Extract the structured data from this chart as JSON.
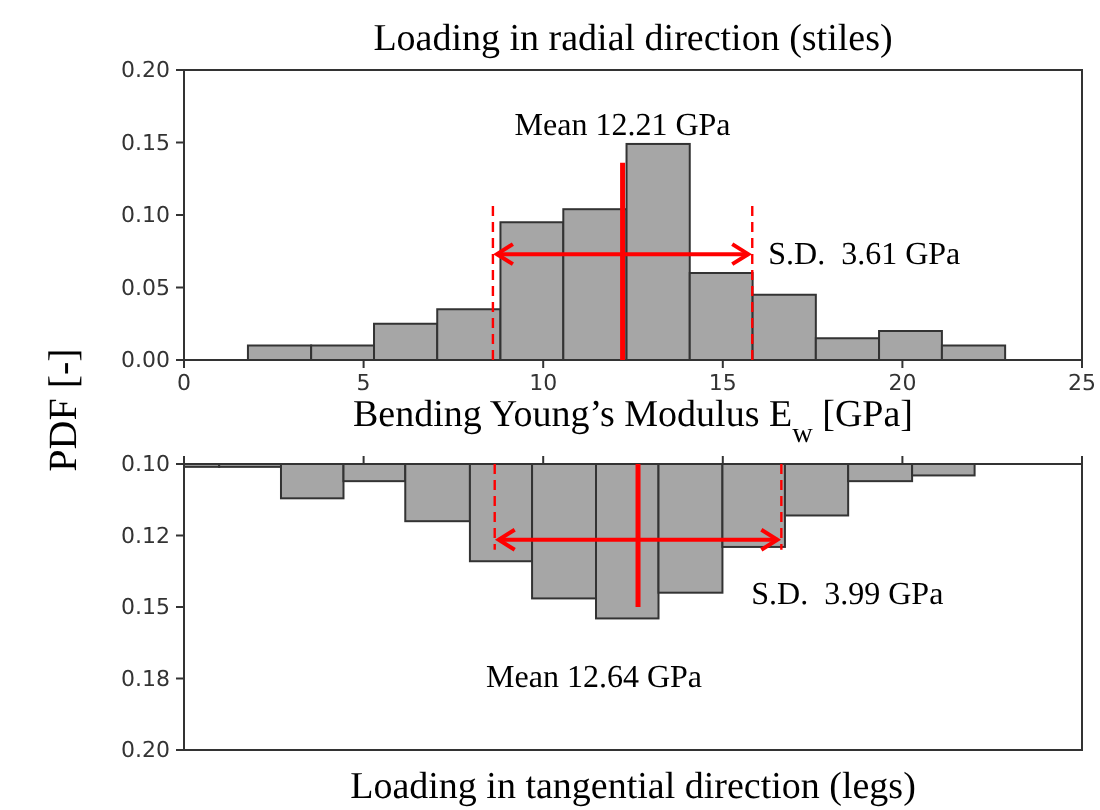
{
  "chart_data": [
    {
      "type": "histogram",
      "title": "Loading in radial direction (stiles)",
      "xlabel": "Bending Young’s Modulus E$_{w}$ [GPa]",
      "ylabel": "PDF [-]",
      "color": "#a6a6a6",
      "bins": [
        1.78,
        3.54,
        5.29,
        7.05,
        8.81,
        10.56,
        12.32,
        14.08,
        15.83,
        17.59,
        19.35,
        21.1,
        22.86
      ],
      "values": [
        0.01,
        0.01,
        0.025,
        0.035,
        0.095,
        0.104,
        0.149,
        0.06,
        0.045,
        0.015,
        0.02,
        0.01
      ],
      "xlim": [
        0,
        25
      ],
      "xticks": [
        0,
        5,
        10,
        15,
        20,
        25
      ],
      "ylim": [
        0,
        0.2
      ],
      "yticks": [
        {
          "value": 0,
          "label": "0.00"
        },
        {
          "value": 0.05,
          "label": "0.05"
        },
        {
          "value": 0.1,
          "label": "0.10"
        },
        {
          "value": 0.15,
          "label": "0.15"
        },
        {
          "value": 0.2,
          "label": "0.20"
        }
      ],
      "ref_lines": [
        {
          "axis": "x",
          "value": 12.21,
          "label": "Mean 12.21 GPa",
          "color": "#ff0000"
        },
        {
          "axis": "x",
          "value": 8.6,
          "color": "#ff0000",
          "line_style": "dashed"
        },
        {
          "axis": "x",
          "value": 15.82,
          "color": "#ff0000",
          "line_style": "dashed"
        }
      ],
      "annotations": [
        {
          "text": "S.D.  3.61 GPa",
          "x": 15.82,
          "y": 0.073
        }
      ]
    },
    {
      "type": "histogram",
      "title": "Loading in tangential direction (legs)",
      "color": "#a6a6a6",
      "tick_labels": "y",
      "bins": [
        0,
        0.98,
        2.7,
        4.44,
        6.16,
        7.96,
        9.69,
        11.47,
        13.21,
        14.99,
        16.73,
        18.49,
        20.27,
        22.01
      ],
      "values": [
        0.101,
        0.101,
        0.112,
        0.106,
        0.12,
        0.134,
        0.147,
        0.154,
        0.145,
        0.129,
        0.118,
        0.106,
        0.104
      ],
      "xlim": [
        0,
        25
      ],
      "xticks": [
        0,
        5,
        10,
        15,
        20,
        25
      ],
      "ylim": [
        0.2,
        0.1
      ],
      "yticks": [
        {
          "value": 0.1,
          "label": "0.10"
        },
        {
          "value": 0.125,
          "label": "0.12"
        },
        {
          "value": 0.15,
          "label": "0.15"
        },
        {
          "value": 0.175,
          "label": "0.18"
        },
        {
          "value": 0.2,
          "label": "0.20"
        }
      ],
      "ref_lines": [
        {
          "axis": "x",
          "value": 12.64,
          "label": "Mean 12.64 GPa",
          "color": "#ff0000"
        },
        {
          "axis": "x",
          "value": 8.65,
          "color": "#ff0000",
          "line_style": "dashed"
        },
        {
          "axis": "x",
          "value": 16.63,
          "color": "#ff0000",
          "line_style": "dashed"
        }
      ],
      "annotations": [
        {
          "text": "S.D.  3.99 GPa",
          "x": 16.63,
          "y": 0.1265
        }
      ]
    }
  ]
}
